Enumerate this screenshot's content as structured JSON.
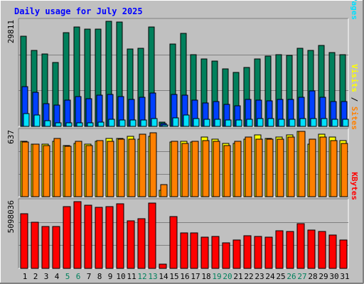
{
  "title": "Daily usage for July 2025",
  "colors": {
    "frame_bg": "#C0C0C0",
    "plot_bg": "#C0C0C0",
    "title": "#0000FF",
    "hits": "#00805C",
    "files": "#0040FF",
    "pages": "#00E0FF",
    "visits": "#FFFF00",
    "sites": "#FF8000",
    "kbytes": "#FF0000",
    "weekday_label": "#000000",
    "weekend_label": "#00805C"
  },
  "chart_data": [
    {
      "type": "bar",
      "name": "hits-files-pages",
      "ymax_label": "29811",
      "ylim": [
        0,
        29811
      ],
      "right_label": {
        "pages": "Pages",
        "sep1": " / ",
        "files": "Files",
        "sep2": " / ",
        "hits": "Hits"
      },
      "categories": [
        "1",
        "2",
        "3",
        "4",
        "5",
        "6",
        "7",
        "8",
        "9",
        "10",
        "11",
        "12",
        "13",
        "14",
        "15",
        "16",
        "17",
        "18",
        "19",
        "20",
        "21",
        "22",
        "23",
        "24",
        "25",
        "26",
        "27",
        "28",
        "29",
        "30",
        "31"
      ],
      "weekend_days": [
        "5",
        "6",
        "12",
        "13",
        "19",
        "20",
        "26",
        "27"
      ],
      "series": [
        {
          "name": "Hits",
          "values": [
            25500,
            21500,
            20500,
            18200,
            26500,
            28200,
            27600,
            27600,
            29811,
            29600,
            22000,
            22200,
            28200,
            1200,
            23400,
            26300,
            20300,
            19200,
            18600,
            16400,
            15400,
            16800,
            19200,
            19900,
            20300,
            20100,
            22200,
            21500,
            22900,
            21000,
            20300
          ]
        },
        {
          "name": "Files",
          "values": [
            11300,
            9700,
            6400,
            6100,
            7400,
            8400,
            7900,
            8800,
            9000,
            8500,
            7700,
            8200,
            9500,
            800,
            9000,
            8800,
            7500,
            6600,
            7000,
            6200,
            5900,
            7600,
            7400,
            7300,
            7600,
            7600,
            8300,
            10100,
            8300,
            7100,
            7100
          ]
        },
        {
          "name": "Pages",
          "values": [
            3700,
            3300,
            1600,
            1000,
            1100,
            1100,
            1100,
            1200,
            2000,
            1900,
            1900,
            1900,
            2200,
            400,
            2500,
            3200,
            2300,
            2100,
            2000,
            1900,
            1900,
            2100,
            2200,
            2200,
            2100,
            2100,
            2200,
            2300,
            2200,
            2100,
            2000
          ]
        }
      ]
    },
    {
      "type": "bar",
      "name": "visits-sites",
      "ymax_label": "637",
      "ylim": [
        0,
        637
      ],
      "right_label": {
        "sites": "Sites",
        "sep1": " / ",
        "visits": "Visits"
      },
      "categories": [
        "1",
        "2",
        "3",
        "4",
        "5",
        "6",
        "7",
        "8",
        "9",
        "10",
        "11",
        "12",
        "13",
        "14",
        "15",
        "16",
        "17",
        "18",
        "19",
        "20",
        "21",
        "22",
        "23",
        "24",
        "25",
        "26",
        "27",
        "28",
        "29",
        "30",
        "31"
      ],
      "weekend_days": [
        "5",
        "6",
        "12",
        "13",
        "19",
        "20",
        "26",
        "27"
      ],
      "series": [
        {
          "name": "Visits",
          "values": [
            540,
            510,
            510,
            540,
            500,
            520,
            510,
            540,
            570,
            570,
            590,
            560,
            590,
            60,
            530,
            540,
            530,
            580,
            560,
            520,
            520,
            560,
            600,
            570,
            580,
            600,
            637,
            510,
            610,
            580,
            550
          ]
        },
        {
          "name": "Sites",
          "values": [
            530,
            510,
            500,
            570,
            490,
            540,
            500,
            550,
            540,
            560,
            560,
            610,
            620,
            120,
            540,
            520,
            540,
            550,
            540,
            500,
            540,
            580,
            560,
            560,
            560,
            580,
            637,
            560,
            580,
            550,
            520
          ]
        }
      ]
    },
    {
      "type": "bar",
      "name": "kbytes",
      "ymax_label": "5098036",
      "ylim": [
        0,
        5098036
      ],
      "right_label": {
        "kbytes": "KBytes"
      },
      "categories": [
        "1",
        "2",
        "3",
        "4",
        "5",
        "6",
        "7",
        "8",
        "9",
        "10",
        "11",
        "12",
        "13",
        "14",
        "15",
        "16",
        "17",
        "18",
        "19",
        "20",
        "21",
        "22",
        "23",
        "24",
        "25",
        "26",
        "27",
        "28",
        "29",
        "30",
        "31"
      ],
      "weekend_days": [
        "5",
        "6",
        "12",
        "13",
        "19",
        "20",
        "26",
        "27"
      ],
      "series": [
        {
          "name": "KBytes",
          "values": [
            4200000,
            3500000,
            3200000,
            3200000,
            4700000,
            5098036,
            4800000,
            4650000,
            4700000,
            4950000,
            3650000,
            3800000,
            5000000,
            300000,
            3950000,
            2700000,
            2700000,
            2400000,
            2450000,
            1950000,
            2150000,
            2500000,
            2450000,
            2400000,
            2900000,
            2800000,
            3400000,
            2950000,
            2800000,
            2550000,
            2150000
          ]
        }
      ]
    }
  ]
}
